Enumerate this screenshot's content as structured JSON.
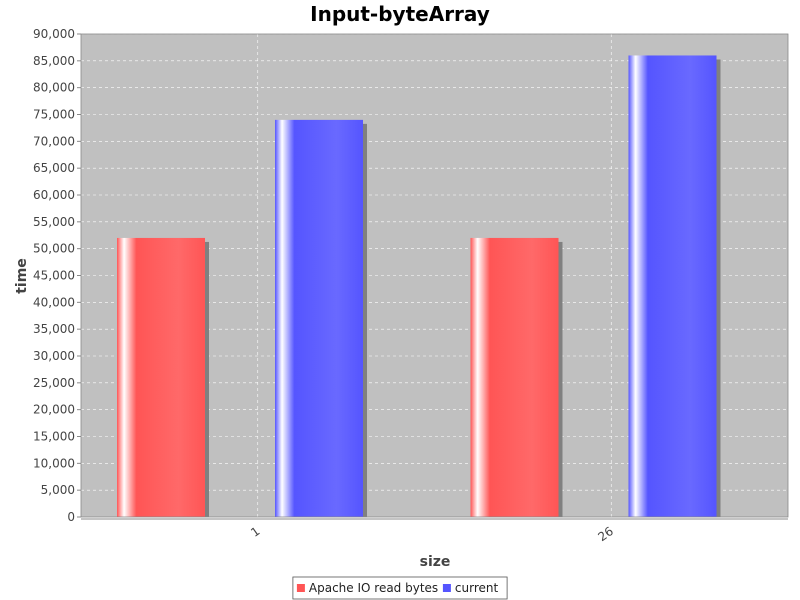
{
  "chart_data": {
    "type": "bar",
    "title": "Input-byteArray",
    "xlabel": "size",
    "ylabel": "time",
    "categories": [
      "1",
      "26"
    ],
    "series": [
      {
        "name": "Apache IO read bytes",
        "values": [
          52000,
          52000
        ],
        "color": "#ff5555"
      },
      {
        "name": "current",
        "values": [
          74000,
          86000
        ],
        "color": "#5555ff"
      }
    ],
    "ylim": [
      0,
      90000
    ],
    "yticks": [
      "0",
      "5,000",
      "10,000",
      "15,000",
      "20,000",
      "25,000",
      "30,000",
      "35,000",
      "40,000",
      "45,000",
      "50,000",
      "55,000",
      "60,000",
      "65,000",
      "70,000",
      "75,000",
      "80,000",
      "85,000",
      "90,000"
    ],
    "grid": true,
    "legend_position": "bottom",
    "plot_background": "#c0c0c0"
  }
}
